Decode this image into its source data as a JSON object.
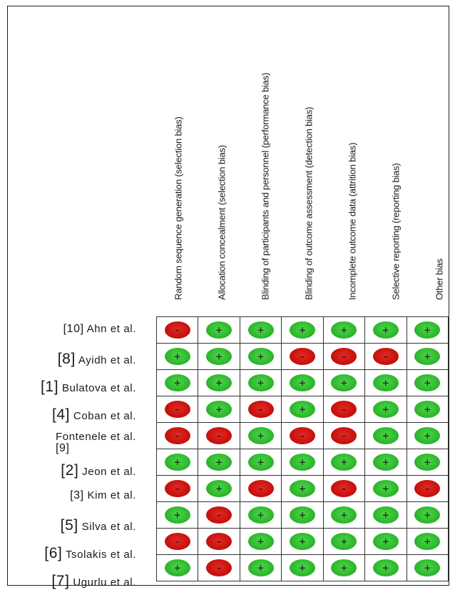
{
  "domains": [
    "Random sequence generation (selection bias)",
    "Allocation concealment (selection bias)",
    "Blinding of participants and personnel (performance bias)",
    "Blinding of outcome assessment (detection bias)",
    "Incomplete outcome data (attrition bias)",
    "Selective reporting (reporting bias)",
    "Other bias"
  ],
  "studies": [
    {
      "ref": "[10]",
      "name": "Ahn et al.",
      "ratings": [
        "high",
        "low",
        "low",
        "low",
        "low",
        "low",
        "low"
      ]
    },
    {
      "ref": "[8]",
      "name": "Ayidh et al.",
      "ratings": [
        "low",
        "low",
        "low",
        "high",
        "high",
        "high",
        "low"
      ]
    },
    {
      "ref": "[1]",
      "name": "Bulatova et al.",
      "ratings": [
        "low",
        "low",
        "low",
        "low",
        "low",
        "low",
        "low"
      ]
    },
    {
      "ref": "[4]",
      "name": "Coban et al.",
      "ratings": [
        "high",
        "low",
        "high",
        "low",
        "high",
        "low",
        "low"
      ]
    },
    {
      "ref": "[9]",
      "name": "Fontenele et al.",
      "ratings": [
        "high",
        "high",
        "low",
        "high",
        "high",
        "low",
        "low"
      ]
    },
    {
      "ref": "[2]",
      "name": "Jeon et al.",
      "ratings": [
        "low",
        "low",
        "low",
        "low",
        "low",
        "low",
        "low"
      ]
    },
    {
      "ref": "[3]",
      "name": "Kim et al.",
      "ratings": [
        "high",
        "low",
        "high",
        "low",
        "high",
        "low",
        "high"
      ]
    },
    {
      "ref": "[5]",
      "name": "Silva et al.",
      "ratings": [
        "low",
        "high",
        "low",
        "low",
        "low",
        "low",
        "low"
      ]
    },
    {
      "ref": "[6]",
      "name": "Tsolakis et al.",
      "ratings": [
        "high",
        "high",
        "low",
        "low",
        "low",
        "low",
        "low"
      ]
    },
    {
      "ref": "[7]",
      "name": "Ugurlu et al.",
      "ratings": [
        "low",
        "high",
        "low",
        "low",
        "low",
        "low",
        "low"
      ]
    }
  ],
  "symbols": {
    "low": "+",
    "high": "–"
  },
  "colors": {
    "low": "#2fb82d",
    "high": "#c8120e"
  }
}
